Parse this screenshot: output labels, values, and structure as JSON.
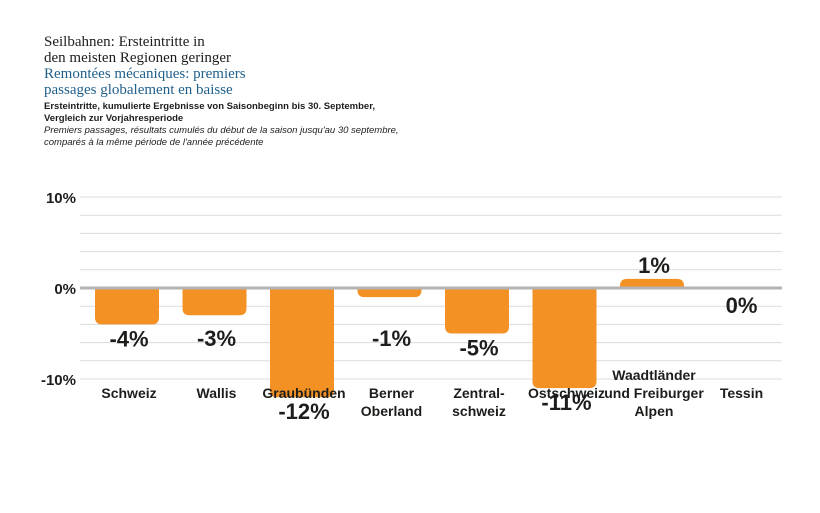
{
  "header": {
    "title_de": "Seilbahnen: Ersteintritte in\nden meisten Regionen geringer",
    "title_fr": "Remontées mécaniques: premiers\npassages globalement en baisse",
    "subtitle_de": "Ersteintritte, kumulierte Ergebnisse von Saisonbeginn bis 30. September,\nVergleich zur Vorjahresperiode",
    "subtitle_fr": "Premiers passages, résultats cumulés du début de la saison jusqu'au 30 septembre,\ncomparés à la même période de l'année précédente"
  },
  "chart_data": {
    "type": "bar",
    "title": "Seilbahnen: Ersteintritte in den meisten Regionen geringer",
    "categories": [
      "Schweiz",
      "Wallis",
      "Graubünden",
      "Berner\nOberland",
      "Zentral-\nschweiz",
      "Ostschweiz",
      "Waadtländer\nund Freiburger\nAlpen",
      "Tessin"
    ],
    "values": [
      -4,
      -3,
      -12,
      -1,
      -5,
      -11,
      1,
      0
    ],
    "value_labels": [
      "-4%",
      "-3%",
      "-12%",
      "-1%",
      "-5%",
      "-11%",
      "1%",
      "0%"
    ],
    "yticks": [
      10,
      0,
      -10
    ],
    "ytick_labels": [
      "10%",
      "0%",
      "-10%"
    ],
    "ylim": [
      -12,
      10
    ],
    "grid": true,
    "bar_color": "#f39125",
    "zero_line_color": "#b3b3b3",
    "grid_color": "#dcdcdc"
  }
}
